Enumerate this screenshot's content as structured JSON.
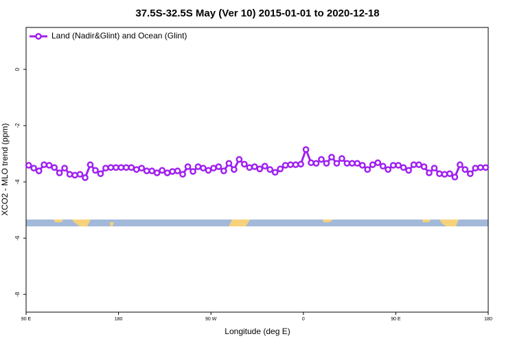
{
  "chart_data": {
    "type": "line",
    "title": "37.5S-32.5S May (Ver 10)   2015-01-01 to 2020-12-18",
    "xlabel": "Longitude (deg E)",
    "ylabel": "XCO2 - MLO trend (ppm)",
    "xlim": [
      90,
      540
    ],
    "ylim": [
      -8.63,
      1.49
    ],
    "xticks": [
      {
        "value": 90,
        "label": "90 E"
      },
      180,
      {
        "value": 270,
        "label": "90 W"
      },
      {
        "value": 360,
        "label": "0"
      },
      {
        "value": 450,
        "label": "90 E"
      },
      {
        "value": 540,
        "label": "180"
      }
    ],
    "yticks": [
      0,
      -2,
      -4,
      -6,
      -8
    ],
    "legend": "top-left",
    "x": [
      92.5,
      97.5,
      102.5,
      107.5,
      112.5,
      117.5,
      122.5,
      127.5,
      132.5,
      137.5,
      142.5,
      147.5,
      152.5,
      157.5,
      162.5,
      167.5,
      172.5,
      177.5,
      182.5,
      187.5,
      192.5,
      197.5,
      202.5,
      207.5,
      212.5,
      217.5,
      222.5,
      227.5,
      232.5,
      237.5,
      242.5,
      247.5,
      252.5,
      257.5,
      262.5,
      267.5,
      272.5,
      277.5,
      282.5,
      287.5,
      292.5,
      297.5,
      302.5,
      307.5,
      312.5,
      317.5,
      322.5,
      327.5,
      332.5,
      337.5,
      342.5,
      347.5,
      352.5,
      357.5,
      362.5,
      367.5,
      372.5,
      377.5,
      382.5,
      387.5,
      392.5,
      397.5,
      402.5,
      407.5,
      412.5,
      417.5,
      422.5,
      427.5,
      432.5,
      437.5,
      442.5,
      447.5,
      452.5,
      457.5,
      462.5,
      467.5,
      472.5,
      477.5,
      482.5,
      487.5,
      492.5,
      497.5,
      502.5,
      507.5,
      512.5,
      517.5,
      522.5,
      527.5,
      532.5,
      537.5
    ],
    "series": [
      {
        "name": "Land (Nadir&Glint) and Ocean (Glint)",
        "color": "#a020f0",
        "values": [
          -3.41,
          -3.51,
          -3.61,
          -3.39,
          -3.41,
          -3.49,
          -3.68,
          -3.51,
          -3.73,
          -3.76,
          -3.73,
          -3.85,
          -3.39,
          -3.59,
          -3.71,
          -3.51,
          -3.49,
          -3.49,
          -3.49,
          -3.49,
          -3.49,
          -3.56,
          -3.51,
          -3.61,
          -3.61,
          -3.68,
          -3.59,
          -3.68,
          -3.63,
          -3.61,
          -3.73,
          -3.46,
          -3.63,
          -3.46,
          -3.51,
          -3.59,
          -3.51,
          -3.46,
          -3.61,
          -3.34,
          -3.56,
          -3.2,
          -3.37,
          -3.49,
          -3.46,
          -3.54,
          -3.44,
          -3.56,
          -3.66,
          -3.54,
          -3.41,
          -3.39,
          -3.39,
          -3.37,
          -2.85,
          -3.32,
          -3.34,
          -3.2,
          -3.34,
          -3.12,
          -3.34,
          -3.17,
          -3.34,
          -3.34,
          -3.34,
          -3.41,
          -3.56,
          -3.39,
          -3.32,
          -3.44,
          -3.56,
          -3.41,
          -3.41,
          -3.49,
          -3.59,
          -3.39,
          -3.39,
          -3.46,
          -3.68,
          -3.51,
          -3.71,
          -3.73,
          -3.71,
          -3.83,
          -3.39,
          -3.56,
          -3.71,
          -3.51,
          -3.49,
          -3.49
        ]
      }
    ]
  }
}
